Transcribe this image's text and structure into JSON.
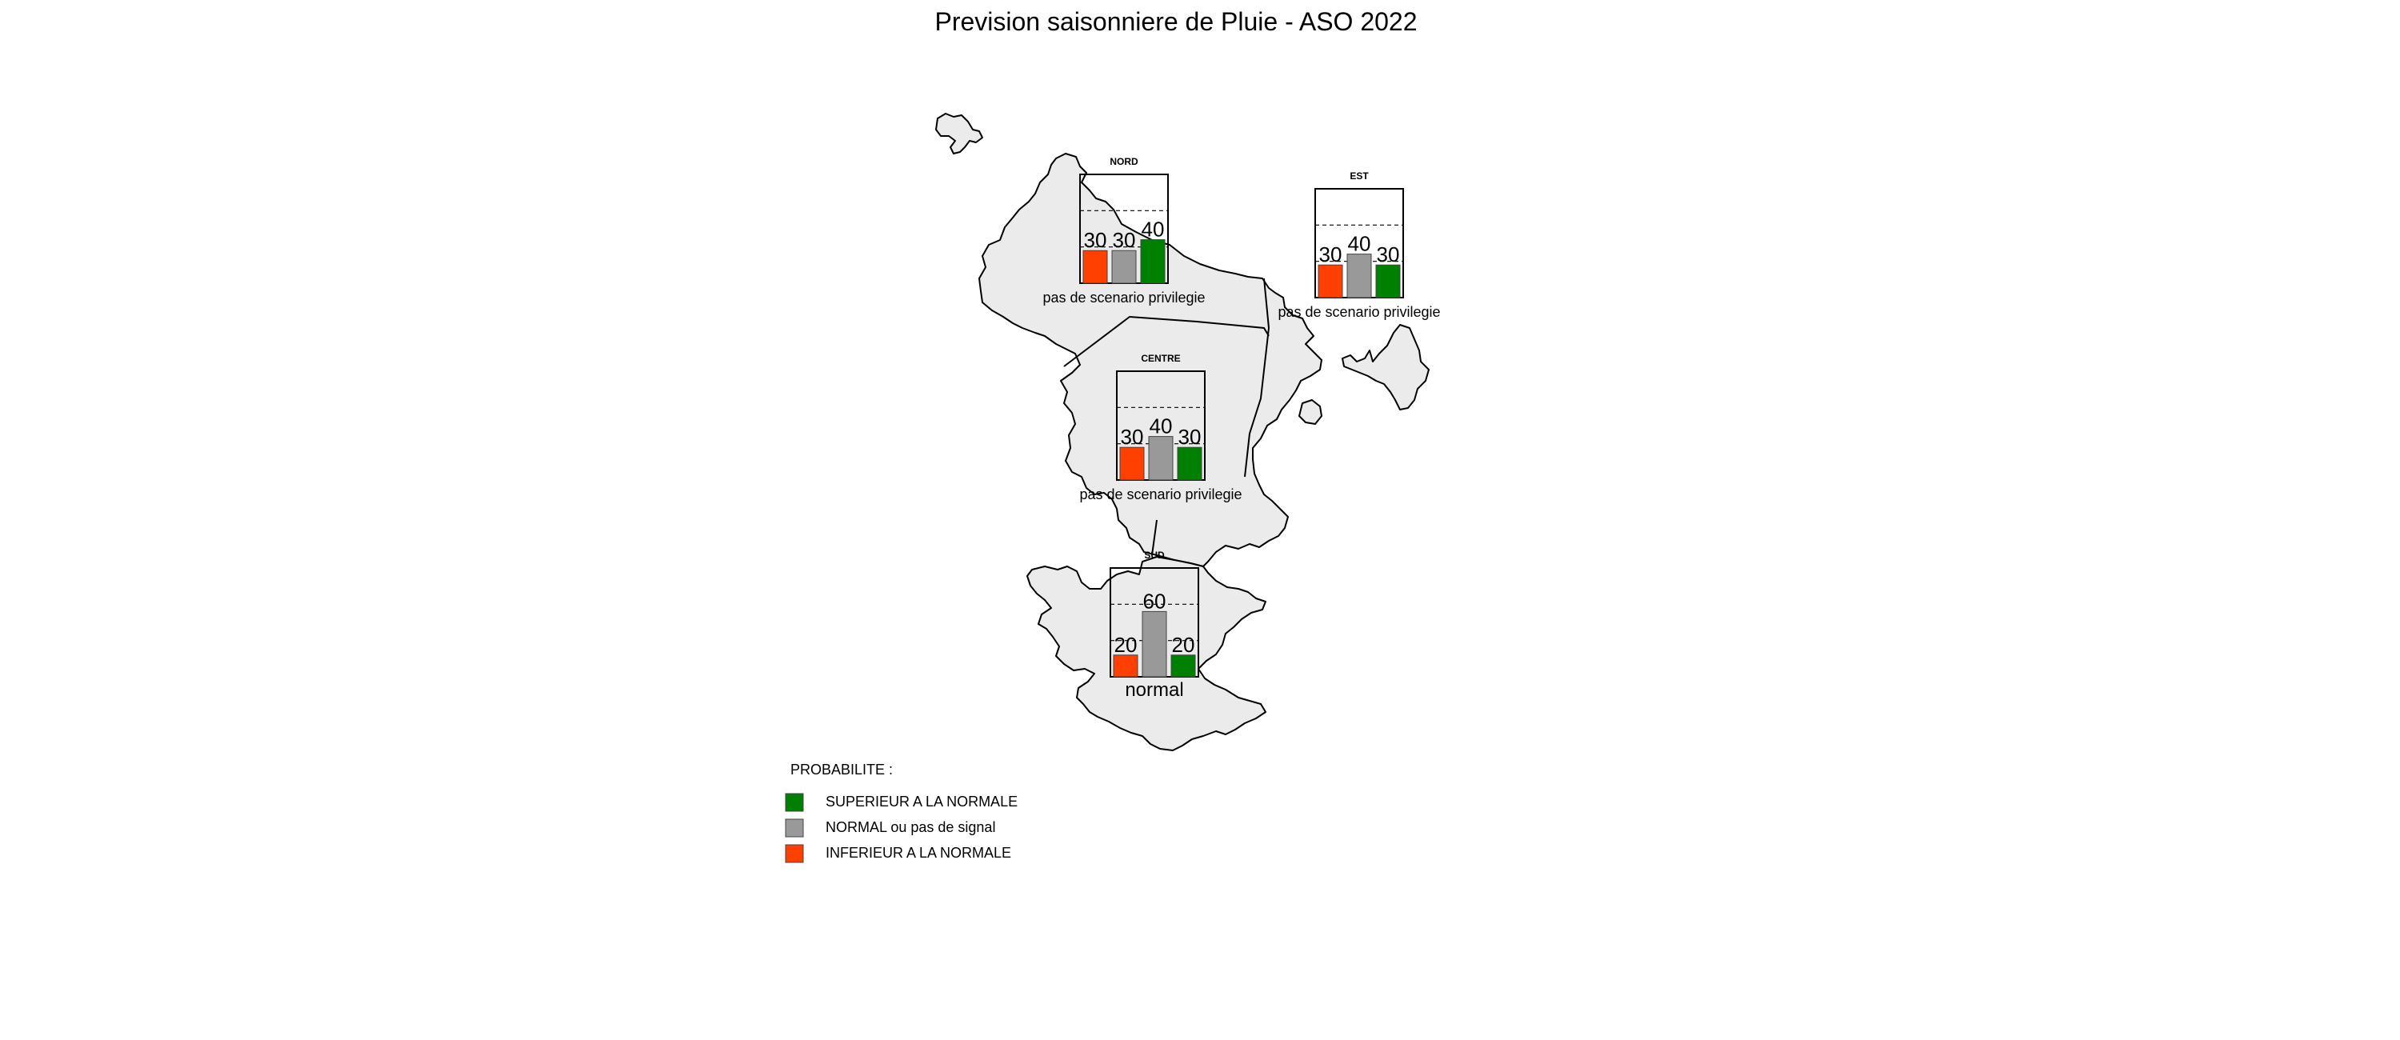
{
  "title": "Prevision saisonniere de  Pluie - ASO 2022",
  "colors": {
    "superieur": "#008000",
    "normal": "#999999",
    "inferieur": "#ff4000",
    "land": "#ebebeb"
  },
  "regions": [
    {
      "id": "nord",
      "name": "NORD",
      "values": [
        30,
        30,
        40
      ],
      "scenario": "pas de scenario privilegie"
    },
    {
      "id": "est",
      "name": "EST",
      "values": [
        30,
        40,
        30
      ],
      "scenario": "pas de scenario privilegie"
    },
    {
      "id": "centre",
      "name": "CENTRE",
      "values": [
        30,
        40,
        30
      ],
      "scenario": "pas de scenario privilegie"
    },
    {
      "id": "sud",
      "name": "SUD",
      "values": [
        20,
        60,
        20
      ],
      "scenario": "normal"
    }
  ],
  "bar_order": [
    "inferieur",
    "normal",
    "superieur"
  ],
  "legend": {
    "title": "PROBABILITE :",
    "items": [
      {
        "key": "superieur",
        "label": "SUPERIEUR A LA NORMALE"
      },
      {
        "key": "normal",
        "label": "NORMAL ou pas de signal"
      },
      {
        "key": "inferieur",
        "label": "INFERIEUR A LA NORMALE"
      }
    ]
  }
}
